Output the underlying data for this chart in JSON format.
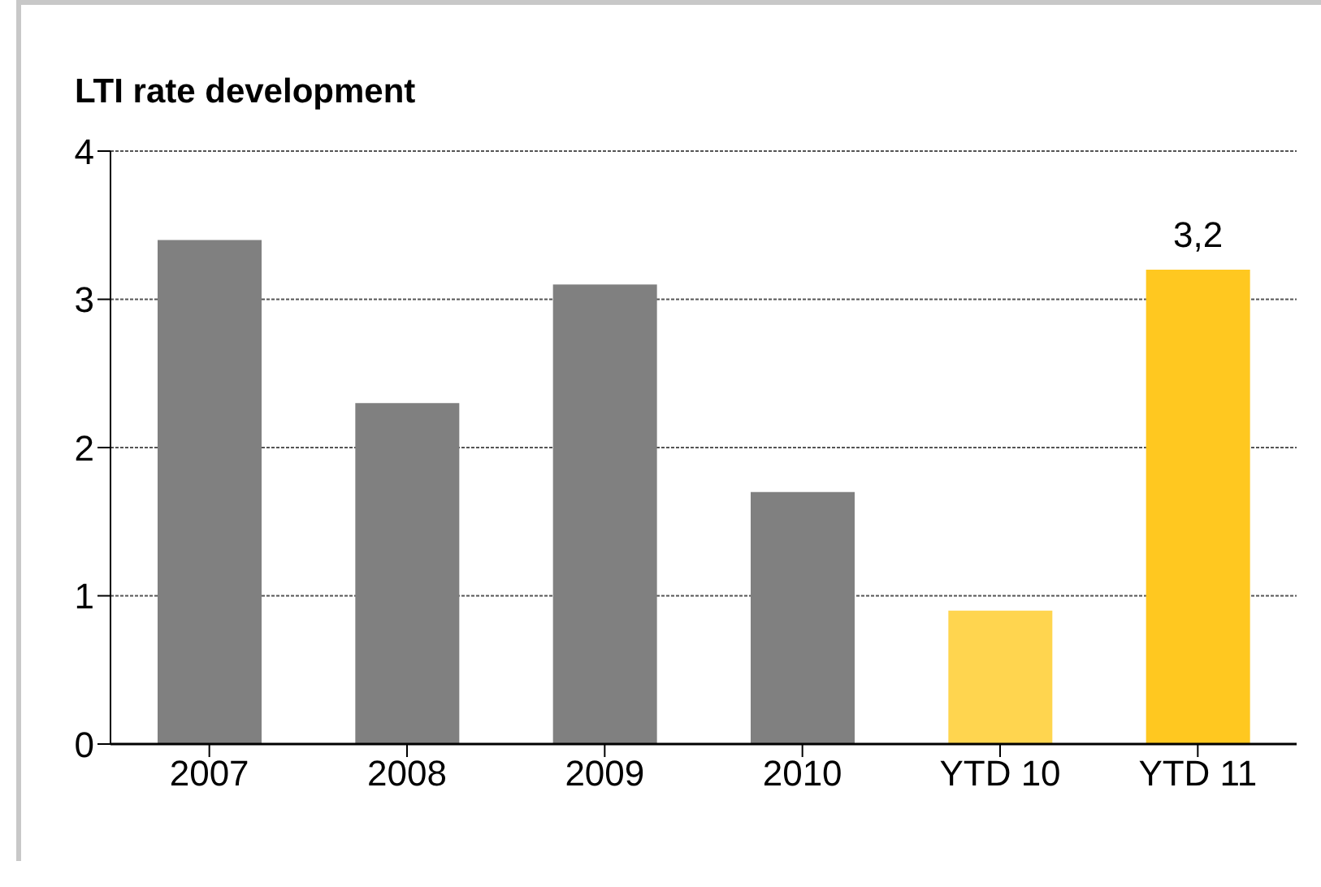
{
  "chart_data": {
    "type": "bar",
    "title": "LTI rate development",
    "categories": [
      "2007",
      "2008",
      "2009",
      "2010",
      "YTD 10",
      "YTD 11"
    ],
    "values": [
      3.4,
      2.3,
      3.1,
      1.7,
      0.9,
      3.2
    ],
    "colors": [
      "#808080",
      "#808080",
      "#808080",
      "#808080",
      "#ffd54f",
      "#ffc820"
    ],
    "value_labels": [
      null,
      null,
      null,
      null,
      null,
      "3,2"
    ],
    "ylim": [
      0,
      4
    ],
    "yticks": [
      0,
      1,
      2,
      3,
      4
    ],
    "grid": "y"
  }
}
